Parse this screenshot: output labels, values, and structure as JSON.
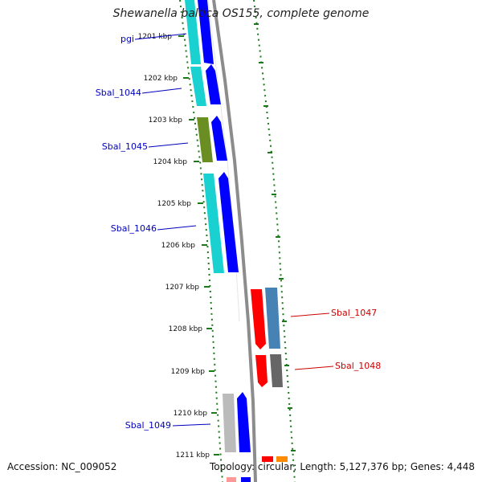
{
  "title": "Shewanella baltica OS155, complete genome",
  "footer": {
    "accession_label": "Accession:",
    "accession": "NC_009052",
    "topology_label": "Topology:",
    "topology": "circular",
    "length_label": "Length:",
    "length": "5,127,376 bp",
    "genes_label": "Genes:",
    "genes": "4,448"
  },
  "colors": {
    "backbone": "#8c8c8c",
    "tick": "#1a7a1a",
    "label_forward": "#0000c0",
    "label_reverse": "#cc0000",
    "cyan": "#1ad1d1",
    "blue": "#0000ff",
    "olive": "#6b8e23",
    "red": "#ff0000",
    "steelblue": "#4682b4",
    "gray": "#666666",
    "lightgray": "#bbbbbb",
    "orange": "#ff8c00"
  },
  "ticks": [
    "1201 kbp",
    "1202 kbp",
    "1203 kbp",
    "1204 kbp",
    "1205 kbp",
    "1206 kbp",
    "1207 kbp",
    "1208 kbp",
    "1209 kbp",
    "1210 kbp",
    "1211 kbp"
  ],
  "gene_labels": [
    {
      "text": "pgi",
      "strand": "forward"
    },
    {
      "text": "Sbal_1044",
      "strand": "forward"
    },
    {
      "text": "Sbal_1045",
      "strand": "forward"
    },
    {
      "text": "Sbal_1046",
      "strand": "forward"
    },
    {
      "text": "Sbal_1047",
      "strand": "reverse"
    },
    {
      "text": "Sbal_1048",
      "strand": "reverse"
    },
    {
      "text": "Sbal_1049",
      "strand": "forward"
    }
  ]
}
